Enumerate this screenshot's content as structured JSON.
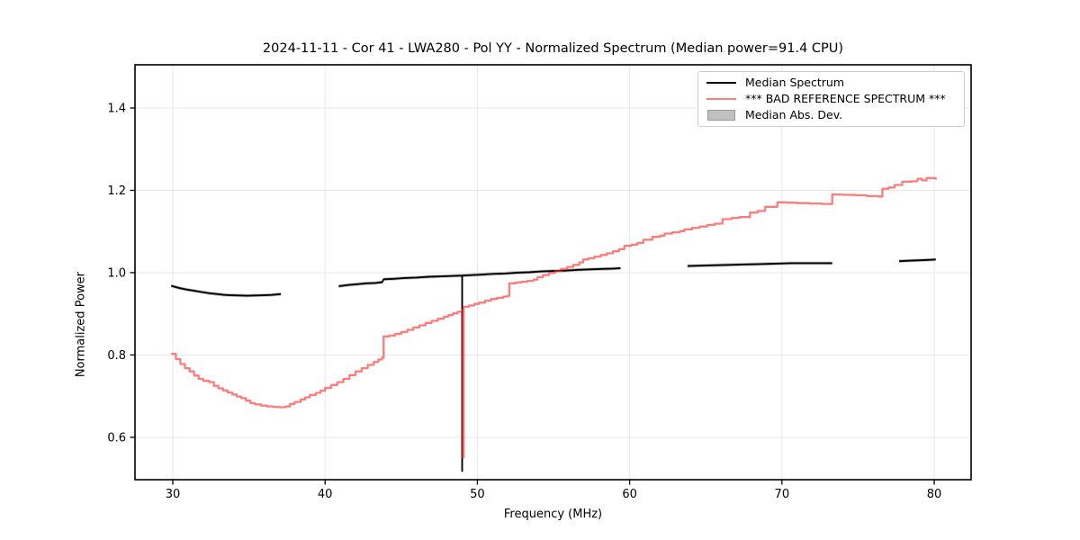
{
  "title": "2024-11-11 - Cor 41 - LWA280 - Pol YY - Normalized Spectrum (Median power=91.4 CPU)",
  "legend": {
    "items": [
      {
        "label": "Median Spectrum",
        "sample": "black-line"
      },
      {
        "label": "*** BAD REFERENCE SPECTRUM ***",
        "sample": "red-line"
      },
      {
        "label": "Median Abs. Dev.",
        "sample": "gray-patch"
      }
    ]
  },
  "colors": {
    "median_line": "#000000",
    "reference_line": "rgba(250,45,45,0.62)",
    "reference_legend": "#f97d7d",
    "mad_band": "#c0c0c0",
    "grid": "#e7e7e7",
    "spine": "#000000"
  },
  "chart_data": {
    "type": "line",
    "title": "2024-11-11 - Cor 41 - LWA280 - Pol YY - Normalized Spectrum (Median power=91.4 CPU)",
    "xlabel": "Frequency (MHz)",
    "ylabel": "Normalized Power",
    "xlim": [
      27.52,
      82.42
    ],
    "ylim": [
      0.497,
      1.505
    ],
    "xticks": [
      30,
      40,
      50,
      60,
      70,
      80
    ],
    "yticks": [
      0.6,
      0.8,
      1.0,
      1.2,
      1.4
    ],
    "grid": true,
    "legend_position": "upper right",
    "series": [
      {
        "name": "Median Spectrum",
        "style": "line",
        "note": "black median spectrum with gaps; vertical dropout spike at 49.0 MHz down to 0.518",
        "segments": [
          [
            [
              29.9,
              0.968
            ],
            [
              30.4,
              0.963
            ],
            [
              30.9,
              0.959
            ],
            [
              31.4,
              0.956
            ],
            [
              31.9,
              0.953
            ],
            [
              32.4,
              0.95
            ],
            [
              32.9,
              0.948
            ],
            [
              33.4,
              0.946
            ],
            [
              33.9,
              0.945
            ],
            [
              34.9,
              0.944
            ],
            [
              35.9,
              0.945
            ],
            [
              36.5,
              0.946
            ],
            [
              37.1,
              0.948
            ]
          ],
          [
            [
              40.9,
              0.967
            ],
            [
              41.5,
              0.97
            ],
            [
              42.1,
              0.972
            ],
            [
              42.7,
              0.974
            ],
            [
              43.3,
              0.975
            ],
            [
              43.75,
              0.977
            ],
            [
              43.85,
              0.984
            ],
            [
              44.5,
              0.985
            ],
            [
              45.2,
              0.987
            ],
            [
              46.0,
              0.988
            ],
            [
              46.8,
              0.99
            ],
            [
              47.6,
              0.991
            ],
            [
              48.4,
              0.992
            ],
            [
              49.0,
              0.993
            ],
            [
              49.0,
              0.518
            ],
            [
              49.0,
              0.993
            ],
            [
              49.6,
              0.994
            ],
            [
              50.2,
              0.995
            ],
            [
              51.0,
              0.997
            ],
            [
              51.8,
              0.998
            ],
            [
              52.6,
              1.0
            ],
            [
              53.4,
              1.001
            ],
            [
              54.2,
              1.003
            ],
            [
              55.0,
              1.004
            ],
            [
              55.8,
              1.005
            ],
            [
              56.6,
              1.007
            ],
            [
              57.4,
              1.008
            ],
            [
              58.2,
              1.009
            ],
            [
              59.0,
              1.01
            ],
            [
              59.4,
              1.011
            ]
          ],
          [
            [
              63.8,
              1.016
            ],
            [
              64.6,
              1.017
            ],
            [
              65.6,
              1.018
            ],
            [
              66.6,
              1.019
            ],
            [
              67.6,
              1.02
            ],
            [
              68.6,
              1.021
            ],
            [
              69.6,
              1.022
            ],
            [
              70.6,
              1.023
            ],
            [
              71.6,
              1.023
            ],
            [
              72.6,
              1.023
            ],
            [
              73.3,
              1.023
            ]
          ],
          [
            [
              77.7,
              1.028
            ],
            [
              78.3,
              1.029
            ],
            [
              79.0,
              1.03
            ],
            [
              79.6,
              1.031
            ],
            [
              80.1,
              1.032
            ]
          ]
        ]
      },
      {
        "name": "*** BAD REFERENCE SPECTRUM ***",
        "style": "step",
        "note": "semi-transparent red; dips to ~0.673 near 36 MHz, rises to ~1.23 at 80 MHz; dropout spike at 49.0 MHz down to 0.551",
        "points": [
          [
            29.9,
            0.803
          ],
          [
            30.2,
            0.79
          ],
          [
            30.5,
            0.778
          ],
          [
            30.8,
            0.768
          ],
          [
            31.1,
            0.76
          ],
          [
            31.4,
            0.75
          ],
          [
            31.7,
            0.742
          ],
          [
            32.0,
            0.737
          ],
          [
            32.4,
            0.734
          ],
          [
            32.7,
            0.725
          ],
          [
            33.0,
            0.719
          ],
          [
            33.3,
            0.714
          ],
          [
            33.6,
            0.709
          ],
          [
            33.9,
            0.704
          ],
          [
            34.2,
            0.699
          ],
          [
            34.5,
            0.695
          ],
          [
            34.8,
            0.689
          ],
          [
            35.1,
            0.683
          ],
          [
            35.4,
            0.68
          ],
          [
            35.8,
            0.677
          ],
          [
            36.2,
            0.675
          ],
          [
            36.6,
            0.674
          ],
          [
            37.0,
            0.673
          ],
          [
            37.4,
            0.675
          ],
          [
            37.7,
            0.681
          ],
          [
            38.0,
            0.686
          ],
          [
            38.4,
            0.692
          ],
          [
            38.7,
            0.697
          ],
          [
            39.0,
            0.703
          ],
          [
            39.4,
            0.708
          ],
          [
            39.7,
            0.713
          ],
          [
            40.0,
            0.72
          ],
          [
            40.4,
            0.727
          ],
          [
            40.8,
            0.734
          ],
          [
            41.2,
            0.742
          ],
          [
            41.6,
            0.751
          ],
          [
            42.0,
            0.76
          ],
          [
            42.4,
            0.768
          ],
          [
            42.8,
            0.776
          ],
          [
            43.2,
            0.783
          ],
          [
            43.5,
            0.789
          ],
          [
            43.75,
            0.794
          ],
          [
            43.85,
            0.845
          ],
          [
            44.2,
            0.847
          ],
          [
            44.6,
            0.851
          ],
          [
            45.0,
            0.856
          ],
          [
            45.4,
            0.861
          ],
          [
            45.8,
            0.867
          ],
          [
            46.2,
            0.872
          ],
          [
            46.6,
            0.878
          ],
          [
            47.0,
            0.883
          ],
          [
            47.4,
            0.888
          ],
          [
            47.8,
            0.893
          ],
          [
            48.1,
            0.897
          ],
          [
            48.4,
            0.901
          ],
          [
            48.7,
            0.905
          ],
          [
            49.0,
            0.91
          ],
          [
            49.03,
            0.551
          ],
          [
            49.1,
            0.917
          ],
          [
            49.45,
            0.92
          ],
          [
            49.8,
            0.924
          ],
          [
            50.1,
            0.927
          ],
          [
            50.5,
            0.932
          ],
          [
            50.9,
            0.936
          ],
          [
            51.3,
            0.939
          ],
          [
            51.7,
            0.942
          ],
          [
            52.0,
            0.944
          ],
          [
            52.1,
            0.974
          ],
          [
            52.5,
            0.976
          ],
          [
            52.9,
            0.978
          ],
          [
            53.3,
            0.98
          ],
          [
            53.7,
            0.983
          ],
          [
            53.95,
            0.989
          ],
          [
            54.3,
            0.994
          ],
          [
            54.7,
            0.999
          ],
          [
            55.1,
            1.004
          ],
          [
            55.5,
            1.009
          ],
          [
            55.9,
            1.014
          ],
          [
            56.3,
            1.019
          ],
          [
            56.7,
            1.025
          ],
          [
            56.95,
            1.032
          ],
          [
            57.3,
            1.035
          ],
          [
            57.7,
            1.039
          ],
          [
            58.1,
            1.043
          ],
          [
            58.5,
            1.047
          ],
          [
            58.9,
            1.052
          ],
          [
            59.3,
            1.057
          ],
          [
            59.65,
            1.065
          ],
          [
            60.1,
            1.068
          ],
          [
            60.5,
            1.072
          ],
          [
            60.9,
            1.08
          ],
          [
            61.5,
            1.087
          ],
          [
            62.0,
            1.09
          ],
          [
            62.3,
            1.095
          ],
          [
            62.8,
            1.098
          ],
          [
            63.3,
            1.101
          ],
          [
            63.6,
            1.105
          ],
          [
            64.1,
            1.109
          ],
          [
            64.6,
            1.112
          ],
          [
            65.1,
            1.116
          ],
          [
            65.6,
            1.119
          ],
          [
            66.1,
            1.13
          ],
          [
            66.7,
            1.133
          ],
          [
            67.2,
            1.135
          ],
          [
            67.9,
            1.146
          ],
          [
            68.4,
            1.15
          ],
          [
            68.9,
            1.16
          ],
          [
            69.7,
            1.171
          ],
          [
            70.3,
            1.17
          ],
          [
            71.0,
            1.169
          ],
          [
            71.8,
            1.168
          ],
          [
            72.6,
            1.167
          ],
          [
            73.3,
            1.19
          ],
          [
            74.0,
            1.189
          ],
          [
            74.8,
            1.188
          ],
          [
            75.6,
            1.186
          ],
          [
            76.3,
            1.185
          ],
          [
            76.6,
            1.204
          ],
          [
            77.0,
            1.207
          ],
          [
            77.4,
            1.213
          ],
          [
            77.9,
            1.221
          ],
          [
            78.5,
            1.222
          ],
          [
            78.9,
            1.228
          ],
          [
            79.2,
            1.224
          ],
          [
            79.5,
            1.23
          ],
          [
            80.1,
            1.226
          ]
        ]
      },
      {
        "name": "Median Abs. Dev.",
        "style": "band",
        "half_width": 0.004,
        "note": "thin gray band hugging the median spectrum"
      }
    ]
  }
}
